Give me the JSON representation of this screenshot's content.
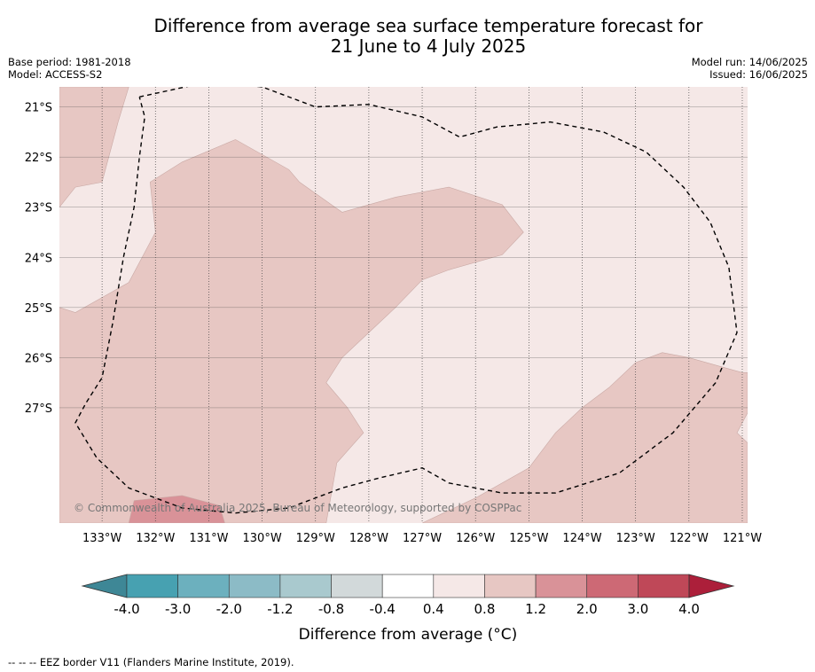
{
  "title_line1": "Difference from average sea surface temperature forecast for",
  "title_line2": "21 June to 4 July 2025",
  "meta": {
    "base_period": "Base period: 1981-2018",
    "model": "Model: ACCESS-S2",
    "model_run": "Model run: 14/06/2025",
    "issued": "Issued: 16/06/2025"
  },
  "copyright": "© Commonwealth of Australia 2025, Bureau of Meteorology, supported by COSPPac",
  "footer": "-- -- -- EEZ border V11 (Flanders Marine Institute, 2019).",
  "chart_data": {
    "type": "heatmap",
    "xlabel": "",
    "ylabel": "",
    "xlim": [
      -133.8,
      -120.9
    ],
    "ylim": [
      -29.3,
      -20.6
    ],
    "x_ticks": [
      -133,
      -132,
      -131,
      -130,
      -129,
      -128,
      -127,
      -126,
      -125,
      -124,
      -123,
      -122,
      -121
    ],
    "x_tick_labels": [
      "133°W",
      "132°W",
      "131°W",
      "130°W",
      "129°W",
      "128°W",
      "127°W",
      "126°W",
      "125°W",
      "124°W",
      "123°W",
      "122°W",
      "121°W"
    ],
    "y_ticks": [
      -21,
      -22,
      -23,
      -24,
      -25,
      -26,
      -27
    ],
    "y_tick_labels": [
      "21°S",
      "22°S",
      "23°S",
      "24°S",
      "25°S",
      "26°S",
      "27°S"
    ],
    "grid": true,
    "background_category": "0.4 to 0.8",
    "regions": [
      {
        "category": "0.8 to 1.2",
        "color": "#e7c7c3",
        "boundary": [
          [
            -133.8,
            -23.0
          ],
          [
            -133.5,
            -22.6
          ],
          [
            -133.0,
            -22.5
          ],
          [
            -132.7,
            -21.3
          ],
          [
            -132.5,
            -20.6
          ],
          [
            -133.8,
            -20.6
          ]
        ]
      },
      {
        "category": "0.8 to 1.2",
        "color": "#e7c7c3",
        "boundary": [
          [
            -133.8,
            -25.0
          ],
          [
            -133.5,
            -25.1
          ],
          [
            -132.5,
            -24.5
          ],
          [
            -132.0,
            -23.5
          ],
          [
            -132.1,
            -22.5
          ],
          [
            -131.5,
            -22.1
          ],
          [
            -130.5,
            -21.65
          ],
          [
            -129.5,
            -22.25
          ],
          [
            -129.3,
            -22.5
          ],
          [
            -128.5,
            -23.1
          ],
          [
            -127.5,
            -22.8
          ],
          [
            -126.5,
            -22.6
          ],
          [
            -125.5,
            -22.95
          ],
          [
            -125.1,
            -23.5
          ],
          [
            -125.5,
            -23.95
          ],
          [
            -126.5,
            -24.25
          ],
          [
            -127.0,
            -24.45
          ],
          [
            -127.5,
            -25.0
          ],
          [
            -128.0,
            -25.5
          ],
          [
            -128.5,
            -26.0
          ],
          [
            -128.8,
            -26.5
          ],
          [
            -128.4,
            -27.0
          ],
          [
            -128.1,
            -27.5
          ],
          [
            -128.6,
            -28.1
          ],
          [
            -128.8,
            -29.3
          ],
          [
            -133.8,
            -29.3
          ]
        ]
      },
      {
        "category": "0.8 to 1.2",
        "color": "#e7c7c3",
        "boundary": [
          [
            -127.0,
            -29.3
          ],
          [
            -126.0,
            -28.8
          ],
          [
            -125.0,
            -28.2
          ],
          [
            -124.5,
            -27.5
          ],
          [
            -124.0,
            -27.0
          ],
          [
            -123.5,
            -26.6
          ],
          [
            -123.0,
            -26.1
          ],
          [
            -122.5,
            -25.9
          ],
          [
            -122.0,
            -26.0
          ],
          [
            -121.0,
            -26.3
          ],
          [
            -120.9,
            -26.3
          ],
          [
            -120.9,
            -27.1
          ],
          [
            -121.1,
            -27.5
          ],
          [
            -120.9,
            -27.7
          ],
          [
            -120.9,
            -29.3
          ]
        ]
      },
      {
        "category": "1.2 to 2.0",
        "color": "#d99298",
        "boundary": [
          [
            -132.5,
            -29.3
          ],
          [
            -132.4,
            -28.85
          ],
          [
            -131.5,
            -28.75
          ],
          [
            -130.8,
            -28.95
          ],
          [
            -130.7,
            -29.3
          ]
        ]
      }
    ],
    "eez_border": [
      [
        -132.3,
        -20.8
      ],
      [
        -131.0,
        -20.5
      ],
      [
        -130.0,
        -20.6
      ],
      [
        -129.0,
        -21.0
      ],
      [
        -128.0,
        -20.95
      ],
      [
        -127.0,
        -21.2
      ],
      [
        -126.3,
        -21.6
      ],
      [
        -125.6,
        -21.4
      ],
      [
        -124.6,
        -21.3
      ],
      [
        -123.6,
        -21.5
      ],
      [
        -122.8,
        -21.9
      ],
      [
        -122.1,
        -22.6
      ],
      [
        -121.6,
        -23.3
      ],
      [
        -121.25,
        -24.2
      ],
      [
        -121.1,
        -25.5
      ],
      [
        -121.5,
        -26.5
      ],
      [
        -122.3,
        -27.5
      ],
      [
        -123.3,
        -28.3
      ],
      [
        -124.5,
        -28.7
      ],
      [
        -125.5,
        -28.7
      ],
      [
        -126.5,
        -28.5
      ],
      [
        -127.0,
        -28.2
      ],
      [
        -127.8,
        -28.4
      ],
      [
        -128.5,
        -28.6
      ],
      [
        -129.5,
        -29.0
      ],
      [
        -130.5,
        -29.1
      ],
      [
        -131.5,
        -29.0
      ],
      [
        -132.5,
        -28.6
      ],
      [
        -133.1,
        -28.0
      ],
      [
        -133.5,
        -27.3
      ],
      [
        -133.3,
        -26.9
      ],
      [
        -133.0,
        -26.4
      ],
      [
        -132.8,
        -25.3
      ],
      [
        -132.6,
        -24.0
      ],
      [
        -132.4,
        -23.0
      ],
      [
        -132.3,
        -22.0
      ],
      [
        -132.2,
        -21.2
      ],
      [
        -132.3,
        -20.8
      ]
    ],
    "colorbar": {
      "label": "Difference from average (°C)",
      "tick_labels": [
        "-4.0",
        "-3.0",
        "-2.0",
        "-1.2",
        "-0.8",
        "-0.4",
        "0.4",
        "0.8",
        "1.2",
        "2.0",
        "3.0",
        "4.0"
      ],
      "colors": [
        "#47a1b1",
        "#6cb0be",
        "#8cbbc6",
        "#a9c9ce",
        "#d2d9da",
        "#ffffff",
        "#f5e8e7",
        "#e7c7c3",
        "#d99298",
        "#cd6975",
        "#bf4858"
      ],
      "extend_low_color": "#3e8796",
      "extend_high_color": "#ac1f3a"
    }
  }
}
